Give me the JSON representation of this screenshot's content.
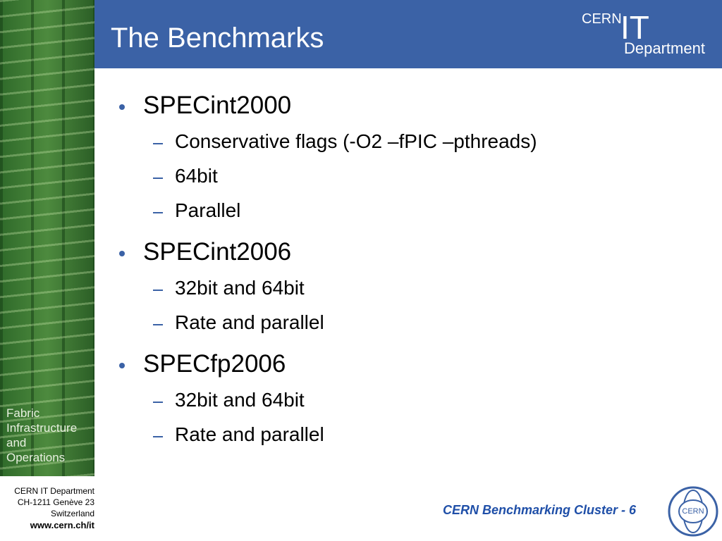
{
  "header": {
    "title": "The Benchmarks",
    "logo": {
      "org": "CERN",
      "unit": "IT",
      "dept": "Department"
    }
  },
  "sidebar": {
    "lines": [
      "Fabric",
      "Infrastructure",
      "and",
      "Operations"
    ]
  },
  "address": {
    "lines": [
      "CERN IT Department",
      "CH-1211 Genève 23",
      "Switzerland"
    ],
    "url": "www.cern.ch/it"
  },
  "content": {
    "items": [
      {
        "text": "SPECint2000",
        "subitems": [
          "Conservative flags (-O2 –fPIC –pthreads)",
          "64bit",
          "Parallel"
        ]
      },
      {
        "text": "SPECint2006",
        "subitems": [
          "32bit and 64bit",
          "Rate and parallel"
        ]
      },
      {
        "text": "SPECfp2006",
        "subitems": [
          "32bit and 64bit",
          "Rate and parallel"
        ]
      }
    ]
  },
  "footer": {
    "text": "CERN Benchmarking Cluster - 6",
    "logo": "CERN"
  }
}
